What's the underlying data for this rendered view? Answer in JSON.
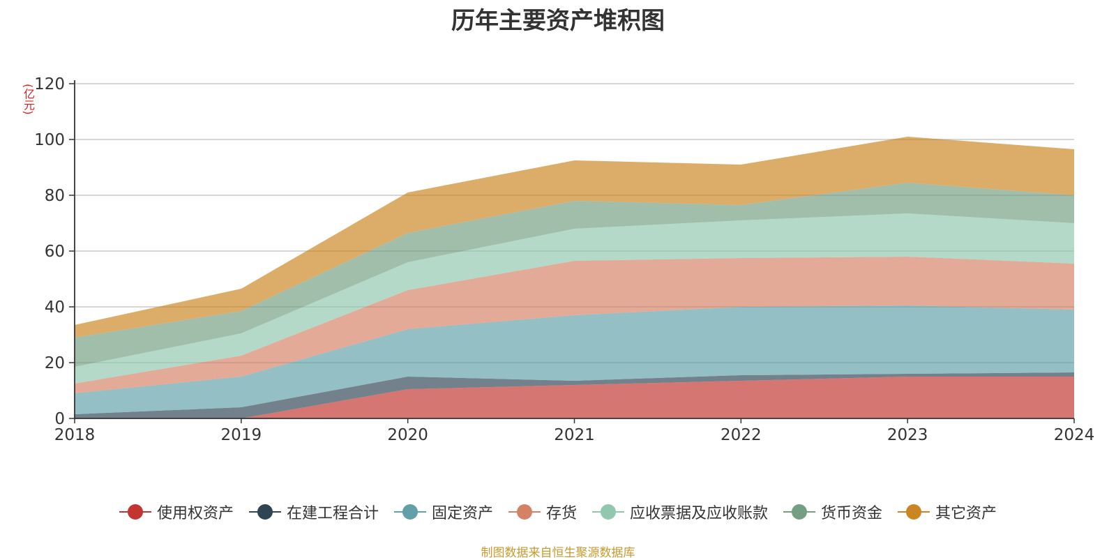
{
  "chart_data": {
    "type": "area",
    "title": "历年主要资产堆积图",
    "unit_label": "(亿元)",
    "x": [
      "2018",
      "2019",
      "2020",
      "2021",
      "2022",
      "2023",
      "2024"
    ],
    "ylim": [
      0,
      120
    ],
    "yticks": [
      "0",
      "20",
      "40",
      "60",
      "80",
      "100",
      "120"
    ],
    "stacked": true,
    "grid": true,
    "legend_position": "bottom",
    "series": [
      {
        "name": "使用权资产",
        "color": "#c23531",
        "values": [
          0,
          0,
          10.5,
          12.0,
          13.5,
          15.0,
          15.0
        ]
      },
      {
        "name": "在建工程合计",
        "color": "#2f4554",
        "values": [
          1.5,
          4.0,
          4.5,
          1.5,
          2.0,
          1.0,
          1.5
        ]
      },
      {
        "name": "固定资产",
        "color": "#61a0a8",
        "values": [
          7.5,
          11.0,
          17.0,
          23.5,
          24.5,
          24.5,
          22.5
        ]
      },
      {
        "name": "存货",
        "color": "#d48265",
        "values": [
          3.5,
          7.5,
          14.0,
          19.5,
          17.5,
          17.5,
          16.5
        ]
      },
      {
        "name": "应收票据及应收账款",
        "color": "#91c7ae",
        "values": [
          6.0,
          8.0,
          10.0,
          11.5,
          13.5,
          15.5,
          14.5
        ]
      },
      {
        "name": "货币资金",
        "color": "#749f83",
        "values": [
          10.5,
          8.0,
          10.5,
          10.0,
          5.5,
          11.0,
          10.0
        ]
      },
      {
        "name": "其它资产",
        "color": "#ca8622",
        "values": [
          4.5,
          8.0,
          14.5,
          14.5,
          14.5,
          16.5,
          16.5
        ]
      }
    ]
  },
  "source_text": "制图数据来自恒生聚源数据库"
}
